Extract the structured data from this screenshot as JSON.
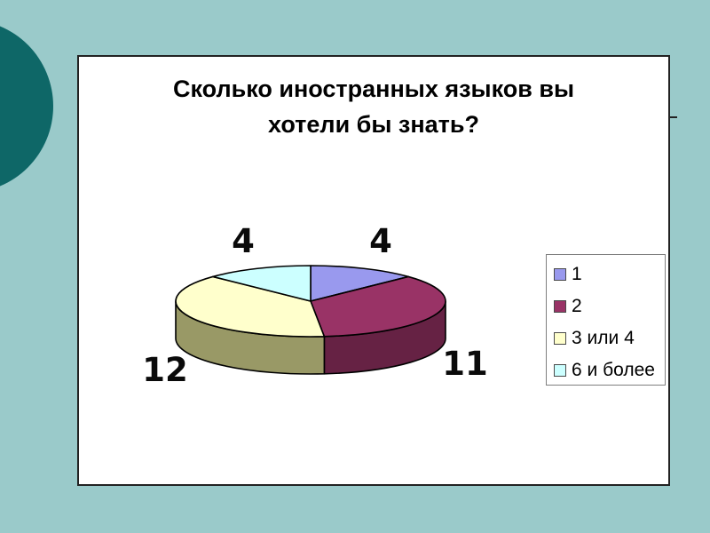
{
  "slide": {
    "background_color": "#9acaca",
    "accent_circle_color": "#0e6767"
  },
  "chart_data": {
    "type": "pie",
    "style": "3d",
    "title": "Сколько иностранных языков вы хотели бы знать?",
    "labels": [
      "1",
      "2",
      "3 или 4",
      "6 и более"
    ],
    "values": [
      4,
      11,
      12,
      4
    ],
    "colors": [
      "#9999ee",
      "#993366",
      "#ffffcc",
      "#ccffff"
    ],
    "side_colors": [
      "#6666aa",
      "#662244",
      "#999966",
      "#99cccc"
    ],
    "start_angle_deg": 0,
    "direction": "clockwise",
    "legend_position": "right",
    "grid": false
  }
}
